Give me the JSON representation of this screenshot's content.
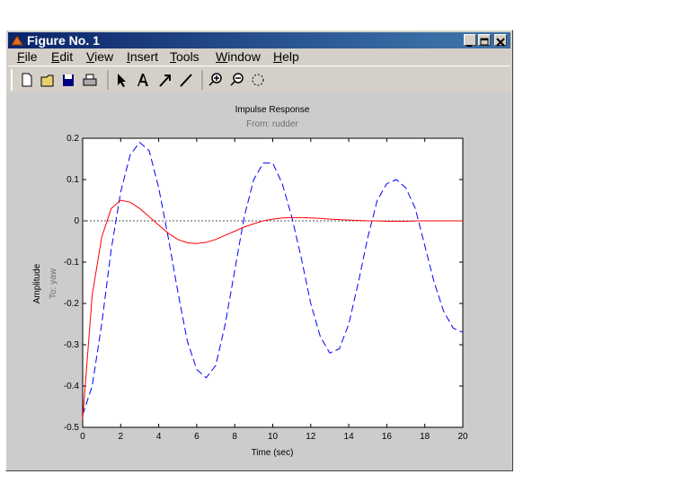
{
  "window": {
    "title": "Figure No. 1",
    "menu": [
      "File",
      "Edit",
      "View",
      "Insert",
      "Tools",
      "Window",
      "Help"
    ]
  },
  "chart_data": {
    "type": "line",
    "title": "Impulse Response",
    "subtitle": "From: rudder",
    "x_label": "Time (sec)",
    "y_label": "Amplitude",
    "y_label_2": "To: yaw",
    "x": [
      0,
      0.5,
      1,
      1.5,
      2,
      2.5,
      3,
      3.5,
      4,
      4.5,
      5,
      5.5,
      6,
      6.5,
      7,
      7.5,
      8,
      8.5,
      9,
      9.5,
      10,
      10.5,
      11,
      11.5,
      12,
      12.5,
      13,
      13.5,
      14,
      14.5,
      15,
      15.5,
      16,
      16.5,
      17,
      17.5,
      18,
      18.5,
      19,
      19.5,
      20
    ],
    "series": [
      {
        "color": "#0000ff",
        "dashed": true,
        "values": [
          -0.47,
          -0.4,
          -0.25,
          -0.07,
          0.07,
          0.16,
          0.19,
          0.17,
          0.08,
          -0.04,
          -0.17,
          -0.29,
          -0.36,
          -0.38,
          -0.35,
          -0.25,
          -0.12,
          0.01,
          0.1,
          0.14,
          0.14,
          0.09,
          0.01,
          -0.09,
          -0.2,
          -0.28,
          -0.32,
          -0.31,
          -0.25,
          -0.15,
          -0.04,
          0.05,
          0.09,
          0.1,
          0.08,
          0.03,
          -0.06,
          -0.15,
          -0.22,
          -0.26,
          -0.27
        ]
      },
      {
        "color": "#ff0000",
        "dashed": false,
        "values": [
          -0.48,
          -0.18,
          -0.04,
          0.03,
          0.05,
          0.045,
          0.03,
          0.01,
          -0.01,
          -0.03,
          -0.045,
          -0.053,
          -0.055,
          -0.052,
          -0.045,
          -0.035,
          -0.025,
          -0.015,
          -0.007,
          0,
          0.004,
          0.007,
          0.008,
          0.008,
          0.007,
          0.006,
          0.004,
          0.003,
          0.002,
          0.001,
          0,
          0,
          -0.001,
          -0.001,
          -0.001,
          0,
          0,
          0,
          0,
          0,
          0
        ]
      }
    ],
    "xlim": [
      0,
      20
    ],
    "xticks": [
      0,
      2,
      4,
      6,
      8,
      10,
      12,
      14,
      16,
      18,
      20
    ],
    "ylim": [
      -0.5,
      0.2
    ],
    "yticks": [
      -0.5,
      -0.4,
      -0.3,
      -0.2,
      -0.1,
      0,
      0.1,
      0.2
    ],
    "zero_line": true
  }
}
